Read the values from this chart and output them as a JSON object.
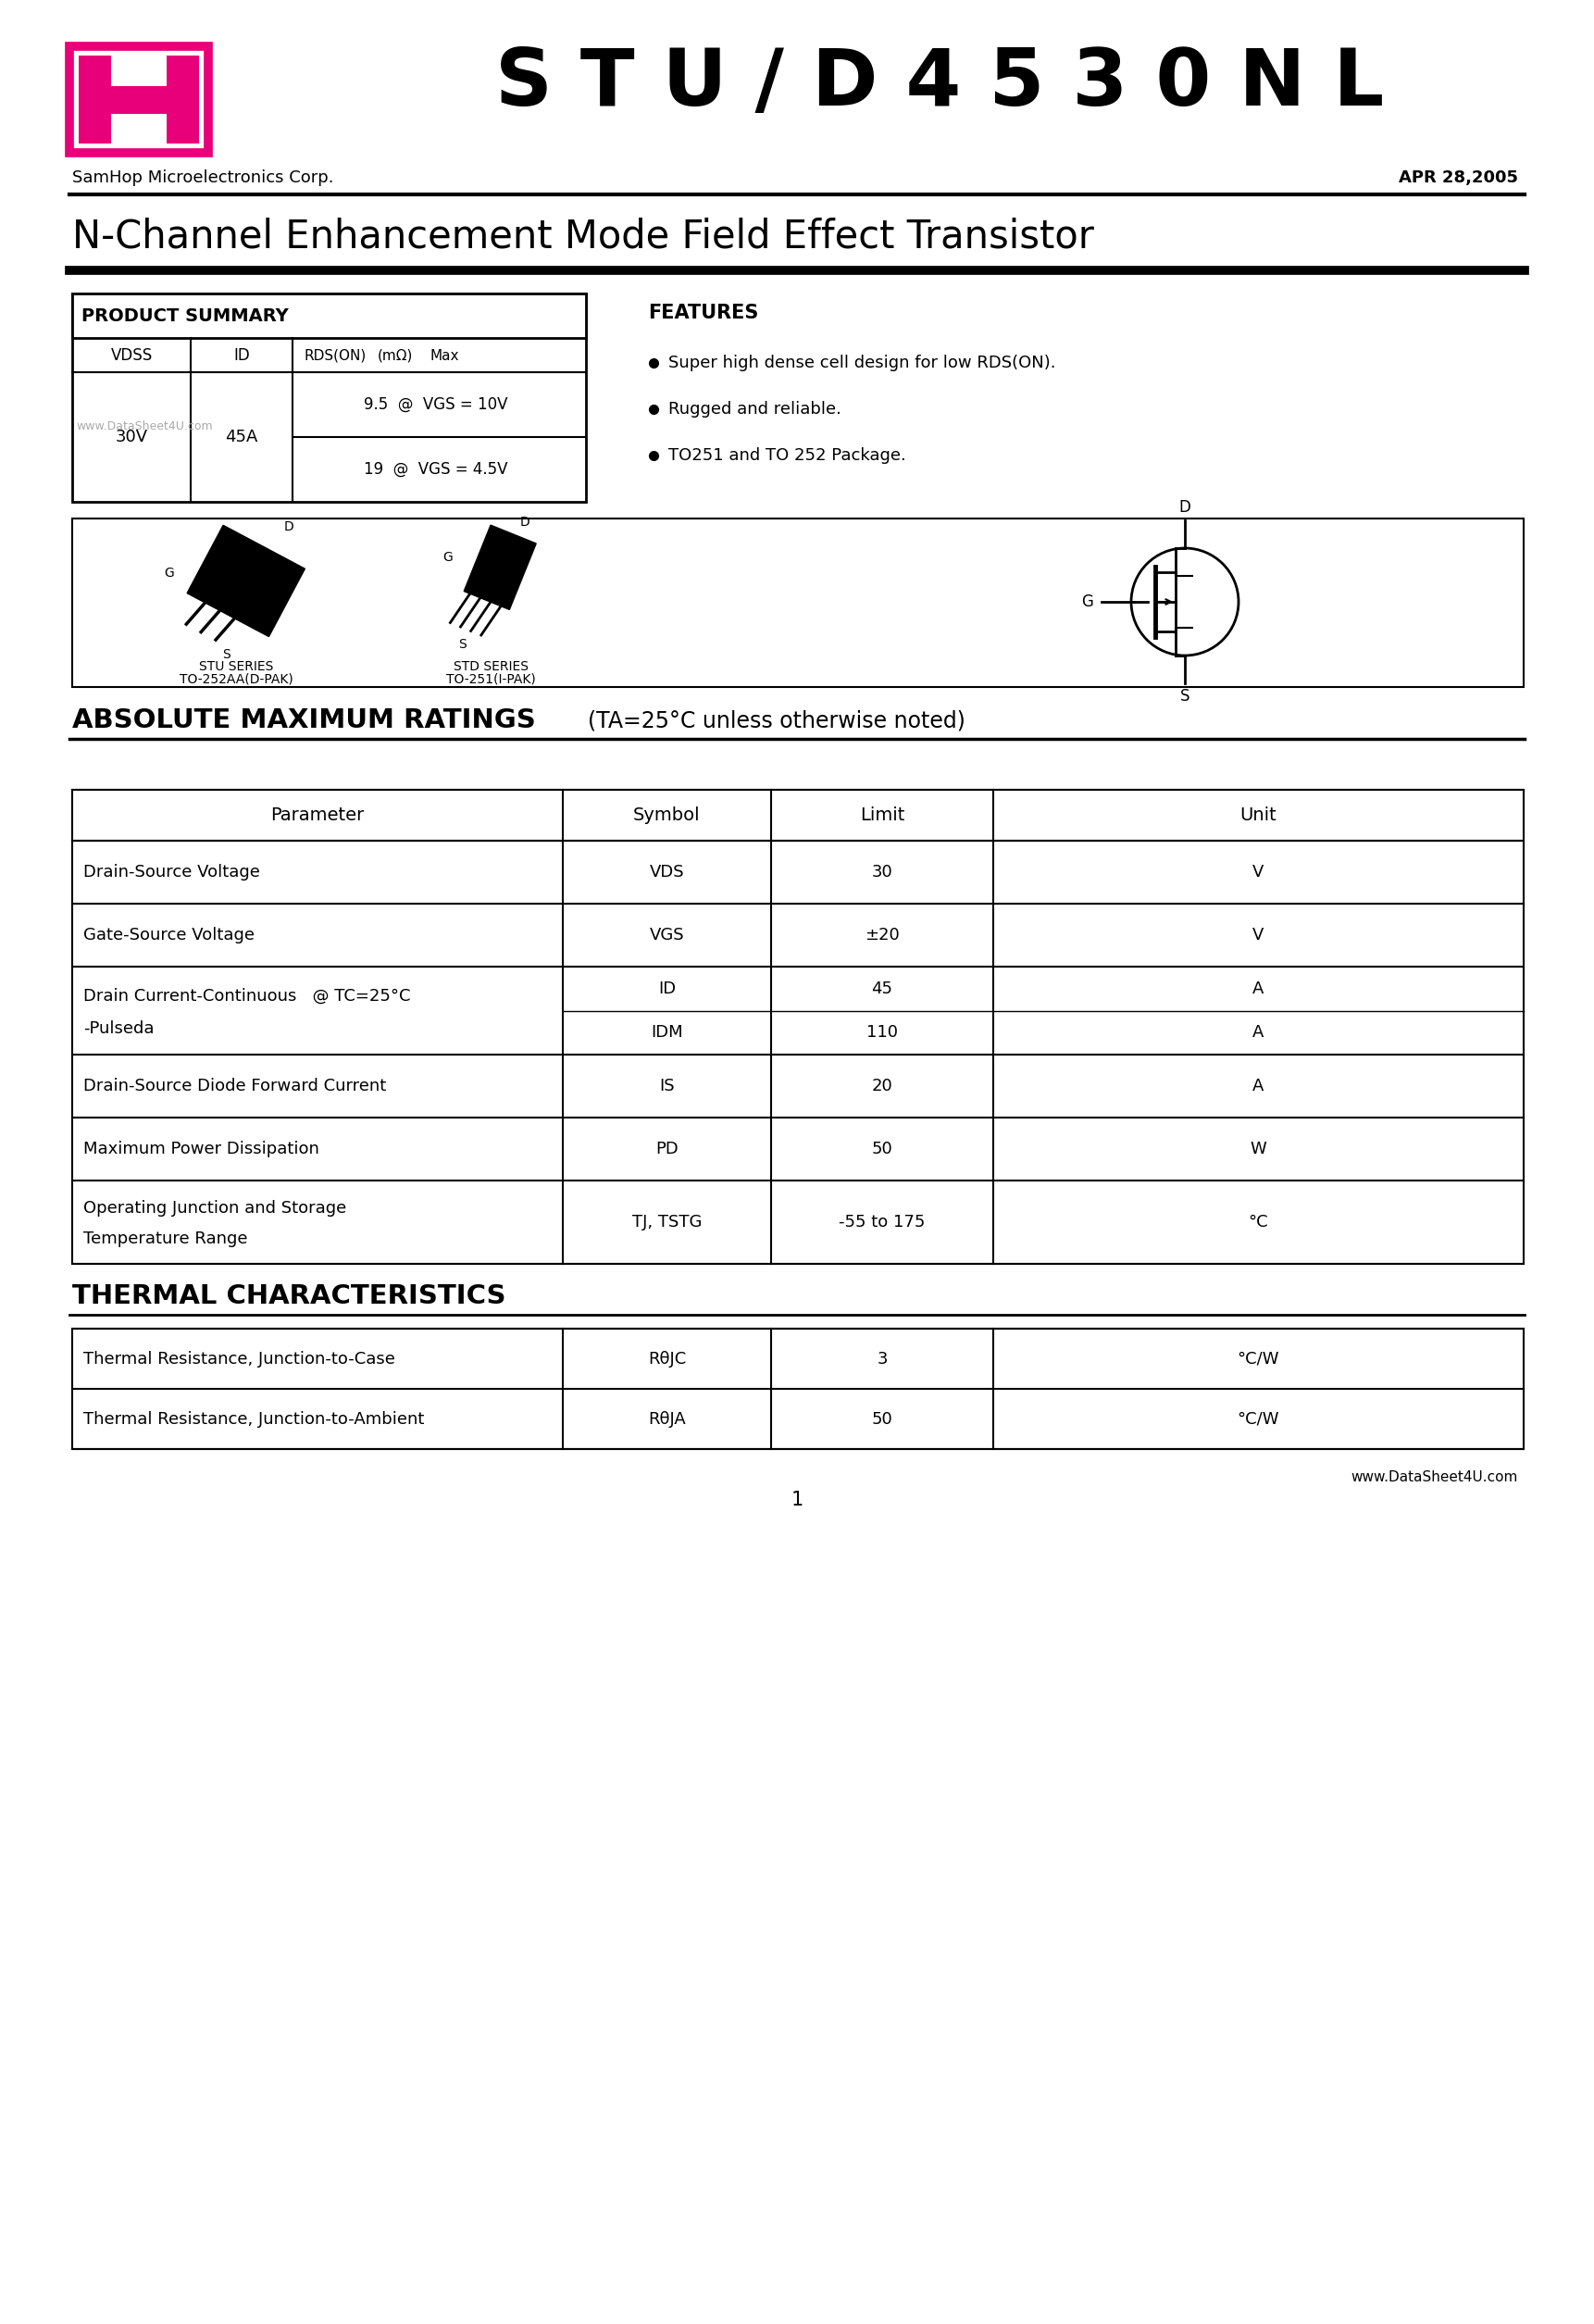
{
  "title_main": " S T U / D 4 5 3 0 N L",
  "company": "SamHop Microelectronics Corp.",
  "date": "APR 28,2005",
  "subtitle": "N-Channel Enhancement Mode Field Effect Transistor",
  "product_summary_title": "PRODUCT SUMMARY",
  "features_title": "FEATURES",
  "features": [
    "Super high dense cell design for low RDS(ON).",
    "Rugged and reliable.",
    "TO251 and TO 252 Package."
  ],
  "abs_title": "ABSOLUTE MAXIMUM RATINGS",
  "abs_subtitle": "  (TA=25°C unless otherwise noted)",
  "abs_headers": [
    "Parameter",
    "Symbol",
    "Limit",
    "Unit"
  ],
  "thermal_title": "THERMAL CHARACTERISTICS",
  "thermal_rows": [
    [
      "Thermal Resistance, Junction-to-Case",
      "RθJC",
      "3",
      "°C/W"
    ],
    [
      "Thermal Resistance, Junction-to-Ambient",
      "RθJA",
      "50",
      "°C/W"
    ]
  ],
  "stu_label1": "STU SERIES",
  "stu_label2": "TO-252AA(D-PAK)",
  "std_label1": "STD SERIES",
  "std_label2": "TO-251(I-PAK)",
  "watermark": "www.DataSheet4U.com",
  "footer": "www.DataSheet4U.com",
  "page_num": "1",
  "logo_color": "#E8007A",
  "bg_color": "#FFFFFF",
  "text_color": "#000000"
}
